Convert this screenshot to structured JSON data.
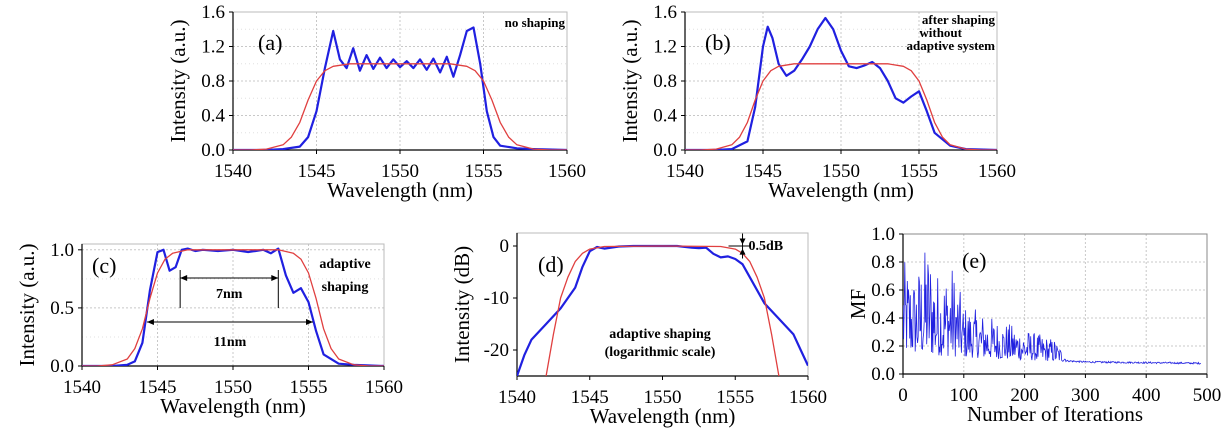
{
  "chart_data": [
    {
      "panel": "(a)",
      "type": "line",
      "annotations": [
        "no shaping"
      ],
      "xlabel": "Wavelength (nm)",
      "ylabel": "Intensity (a.u.)",
      "xlim": [
        1540,
        1560
      ],
      "ylim": [
        0,
        1.6
      ],
      "xticks": [
        "1540",
        "1545",
        "1550",
        "1555",
        "1560"
      ],
      "yticks": [
        "0.0",
        "0.4",
        "0.8",
        "1.2",
        "1.6"
      ],
      "grid": true,
      "series": [
        {
          "color": "#2020e0",
          "x": [
            1540,
            1542,
            1543,
            1544,
            1544.5,
            1545,
            1545.5,
            1546,
            1546.4,
            1546.8,
            1547.2,
            1547.6,
            1548,
            1548.4,
            1548.8,
            1549.2,
            1549.6,
            1550,
            1550.4,
            1550.8,
            1551.2,
            1551.6,
            1552,
            1552.4,
            1552.8,
            1553.2,
            1553.6,
            1554,
            1554.4,
            1554.8,
            1555.2,
            1555.6,
            1556,
            1557,
            1558,
            1560
          ],
          "y": [
            0,
            0,
            0.01,
            0.04,
            0.15,
            0.45,
            0.95,
            1.38,
            1.05,
            0.95,
            1.18,
            0.92,
            1.1,
            0.94,
            1.07,
            0.95,
            1.05,
            0.96,
            1.03,
            0.95,
            1.05,
            0.93,
            1.06,
            0.9,
            1.08,
            0.85,
            1.1,
            1.38,
            1.42,
            1.0,
            0.45,
            0.15,
            0.05,
            0.02,
            0.01,
            0
          ]
        },
        {
          "color": "#e04040",
          "x": [
            1540,
            1541,
            1542,
            1543,
            1543.5,
            1544,
            1544.5,
            1545,
            1545.5,
            1546,
            1547,
            1550,
            1553,
            1554,
            1554.5,
            1555,
            1555.5,
            1556,
            1556.5,
            1557,
            1558,
            1559,
            1560
          ],
          "y": [
            0,
            0,
            0.01,
            0.06,
            0.15,
            0.32,
            0.58,
            0.8,
            0.92,
            0.97,
            1.0,
            1.0,
            1.0,
            0.97,
            0.92,
            0.8,
            0.58,
            0.32,
            0.15,
            0.06,
            0.01,
            0,
            0
          ]
        }
      ]
    },
    {
      "panel": "(b)",
      "type": "line",
      "annotations": [
        "after shaping",
        "without",
        "adaptive system"
      ],
      "xlabel": "Wavelength (nm)",
      "ylabel": "Intensity (a.u.)",
      "xlim": [
        1540,
        1560
      ],
      "ylim": [
        0,
        1.6
      ],
      "xticks": [
        "1540",
        "1545",
        "1550",
        "1555",
        "1560"
      ],
      "yticks": [
        "0.0",
        "0.4",
        "0.8",
        "1.2",
        "1.6"
      ],
      "grid": true,
      "series": [
        {
          "color": "#2020e0",
          "x": [
            1540,
            1542,
            1543,
            1544,
            1544.5,
            1545,
            1545.3,
            1545.6,
            1546,
            1546.5,
            1547,
            1547.5,
            1548,
            1548.5,
            1549,
            1549.5,
            1550,
            1550.5,
            1551,
            1551.5,
            1552,
            1552.5,
            1553,
            1553.5,
            1554,
            1554.5,
            1555,
            1555.5,
            1556,
            1557,
            1558,
            1560
          ],
          "y": [
            0,
            0,
            0.01,
            0.1,
            0.5,
            1.2,
            1.43,
            1.3,
            1.0,
            0.86,
            0.92,
            1.05,
            1.2,
            1.4,
            1.53,
            1.4,
            1.15,
            0.97,
            0.95,
            0.98,
            1.02,
            0.95,
            0.8,
            0.6,
            0.55,
            0.62,
            0.68,
            0.45,
            0.2,
            0.05,
            0.01,
            0
          ]
        },
        {
          "color": "#e04040",
          "x": [
            1540,
            1541,
            1542,
            1543,
            1543.5,
            1544,
            1544.5,
            1545,
            1545.5,
            1546,
            1547,
            1550,
            1553,
            1554,
            1554.5,
            1555,
            1555.5,
            1556,
            1556.5,
            1557,
            1558,
            1559,
            1560
          ],
          "y": [
            0,
            0,
            0.01,
            0.06,
            0.15,
            0.32,
            0.58,
            0.8,
            0.92,
            0.97,
            1.0,
            1.0,
            1.0,
            0.97,
            0.92,
            0.8,
            0.58,
            0.32,
            0.15,
            0.06,
            0.01,
            0,
            0
          ]
        }
      ]
    },
    {
      "panel": "(c)",
      "type": "line",
      "annotations": [
        "adaptive",
        "shaping",
        "7nm",
        "11nm"
      ],
      "xlabel": "Wavelength (nm)",
      "ylabel": "Intensity (a.u.)",
      "xlim": [
        1540,
        1560
      ],
      "ylim": [
        0,
        1.05
      ],
      "xticks": [
        "1540",
        "1545",
        "1550",
        "1555",
        "1560"
      ],
      "yticks": [
        "0.0",
        "0.5",
        "1.0"
      ],
      "grid": true,
      "series": [
        {
          "color": "#2020e0",
          "x": [
            1540,
            1542,
            1543,
            1543.5,
            1544,
            1544.5,
            1545,
            1545.4,
            1545.8,
            1546.2,
            1546.6,
            1547,
            1547.5,
            1548,
            1549,
            1550,
            1551,
            1552,
            1552.5,
            1553,
            1553.5,
            1554,
            1554.5,
            1555,
            1555.5,
            1556,
            1557,
            1558,
            1560
          ],
          "y": [
            0,
            0,
            0.01,
            0.04,
            0.2,
            0.65,
            0.98,
            1.0,
            0.82,
            0.85,
            1.0,
            1.01,
            0.99,
            1.0,
            0.99,
            1.0,
            0.98,
            1.0,
            0.97,
            1.01,
            0.78,
            0.63,
            0.67,
            0.55,
            0.3,
            0.1,
            0.02,
            0.01,
            0
          ]
        },
        {
          "color": "#e04040",
          "x": [
            1540,
            1541,
            1542,
            1543,
            1543.5,
            1544,
            1544.5,
            1545,
            1545.5,
            1546,
            1547,
            1550,
            1553,
            1554,
            1554.5,
            1555,
            1555.5,
            1556,
            1556.5,
            1557,
            1558,
            1559,
            1560
          ],
          "y": [
            0,
            0,
            0.01,
            0.06,
            0.15,
            0.32,
            0.58,
            0.8,
            0.92,
            0.97,
            1.0,
            1.0,
            1.0,
            0.97,
            0.92,
            0.8,
            0.58,
            0.32,
            0.15,
            0.06,
            0.01,
            0,
            0
          ]
        }
      ]
    },
    {
      "panel": "(d)",
      "type": "line",
      "annotations": [
        "0.5dB",
        "adaptive shaping",
        "(logarithmic scale)"
      ],
      "xlabel": "Wavelength (nm)",
      "ylabel": "Intensity (dB)",
      "xlim": [
        1540,
        1560
      ],
      "ylim": [
        -25,
        2.5
      ],
      "xticks": [
        "1540",
        "1545",
        "1550",
        "1555",
        "1560"
      ],
      "yticks": [
        "-20",
        "-10",
        "0"
      ],
      "grid": false,
      "series": [
        {
          "color": "#2020e0",
          "x": [
            1540,
            1540.5,
            1541,
            1542,
            1543,
            1544,
            1544.5,
            1545,
            1545.5,
            1546,
            1547,
            1548,
            1549,
            1550,
            1551,
            1552,
            1552.5,
            1553,
            1553.5,
            1554,
            1554.5,
            1555,
            1555.5,
            1556,
            1557,
            1558,
            1559,
            1559.5,
            1560
          ],
          "y": [
            -25,
            -21,
            -18,
            -15,
            -12,
            -8,
            -4,
            -1,
            -0.2,
            -0.5,
            -0.1,
            0,
            0,
            0,
            0,
            -0.3,
            -0.4,
            -0.3,
            -1.5,
            -2.2,
            -2.0,
            -2.5,
            -3.5,
            -6,
            -11,
            -14,
            -17,
            -20,
            -23
          ]
        },
        {
          "color": "#e04040",
          "x": [
            1542,
            1542.5,
            1543,
            1543.5,
            1544,
            1544.5,
            1545,
            1546,
            1550,
            1554,
            1555,
            1555.5,
            1556,
            1556.5,
            1557,
            1557.5,
            1558
          ],
          "y": [
            -25,
            -17,
            -10,
            -6,
            -3,
            -1.4,
            -0.6,
            -0.1,
            0,
            -0.1,
            -0.6,
            -1.4,
            -3,
            -6,
            -10,
            -17,
            -25
          ]
        }
      ]
    },
    {
      "panel": "(e)",
      "type": "line",
      "xlabel": "Number of Iterations",
      "ylabel": "MF",
      "xlim": [
        0,
        500
      ],
      "ylim": [
        0,
        1.0
      ],
      "xticks": [
        "0",
        "100",
        "200",
        "300",
        "400",
        "500"
      ],
      "yticks": [
        "0.0",
        "0.2",
        "0.4",
        "0.6",
        "0.8",
        "1.0"
      ],
      "grid": true,
      "series": [
        {
          "color": "#2020e0",
          "envelope": [
            [
              0,
              0.82
            ],
            [
              20,
              0.7
            ],
            [
              40,
              0.95
            ],
            [
              60,
              0.7
            ],
            [
              80,
              0.8
            ],
            [
              100,
              0.5
            ],
            [
              150,
              0.4
            ],
            [
              200,
              0.32
            ],
            [
              250,
              0.25
            ],
            [
              270,
              0.12
            ],
            [
              300,
              0.1
            ],
            [
              500,
              0.09
            ]
          ],
          "baseline": [
            [
              0,
              0.15
            ],
            [
              100,
              0.12
            ],
            [
              200,
              0.1
            ],
            [
              260,
              0.09
            ],
            [
              300,
              0.08
            ],
            [
              500,
              0.07
            ]
          ]
        }
      ]
    }
  ]
}
